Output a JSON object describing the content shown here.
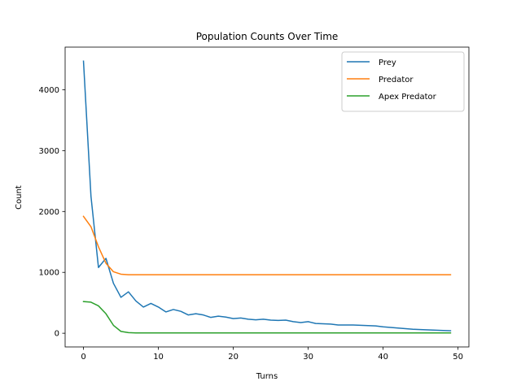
{
  "chart_data": {
    "type": "line",
    "title": "Population Counts Over Time",
    "xlabel": "Turns",
    "ylabel": "Count",
    "xlim": [
      -2.45,
      51.45
    ],
    "ylim": [
      -225,
      4700
    ],
    "xticks": [
      0,
      10,
      20,
      30,
      40,
      50
    ],
    "yticks": [
      0,
      1000,
      2000,
      3000,
      4000
    ],
    "grid": false,
    "legend_position": "top-right",
    "x": [
      0,
      1,
      2,
      3,
      4,
      5,
      6,
      7,
      8,
      9,
      10,
      11,
      12,
      13,
      14,
      15,
      16,
      17,
      18,
      19,
      20,
      21,
      22,
      23,
      24,
      25,
      26,
      27,
      28,
      29,
      30,
      31,
      32,
      33,
      34,
      35,
      36,
      37,
      38,
      39,
      40,
      41,
      42,
      43,
      44,
      45,
      46,
      47,
      48,
      49
    ],
    "series": [
      {
        "name": "Prey",
        "color": "#1f77b4",
        "values": [
          4470,
          2250,
          1080,
          1230,
          820,
          590,
          680,
          530,
          430,
          490,
          430,
          350,
          390,
          360,
          300,
          320,
          300,
          260,
          280,
          265,
          240,
          250,
          230,
          220,
          230,
          215,
          210,
          215,
          190,
          175,
          190,
          160,
          155,
          150,
          135,
          135,
          135,
          130,
          125,
          120,
          105,
          95,
          85,
          75,
          65,
          60,
          55,
          50,
          45,
          40
        ]
      },
      {
        "name": "Predator",
        "color": "#ff7f0e",
        "values": [
          1920,
          1750,
          1420,
          1150,
          1010,
          970,
          962,
          962,
          962,
          962,
          962,
          962,
          962,
          962,
          962,
          962,
          962,
          962,
          962,
          962,
          962,
          962,
          962,
          962,
          962,
          962,
          962,
          962,
          962,
          962,
          962,
          962,
          962,
          962,
          962,
          962,
          962,
          962,
          962,
          962,
          962,
          962,
          962,
          962,
          962,
          962,
          962,
          962,
          962,
          962
        ]
      },
      {
        "name": "Apex Predator",
        "color": "#2ca02c",
        "values": [
          520,
          510,
          450,
          320,
          130,
          30,
          10,
          5,
          5,
          5,
          5,
          5,
          5,
          5,
          5,
          5,
          5,
          5,
          5,
          5,
          5,
          5,
          5,
          5,
          5,
          5,
          5,
          5,
          5,
          5,
          5,
          5,
          5,
          5,
          5,
          5,
          5,
          5,
          5,
          5,
          5,
          5,
          5,
          5,
          5,
          5,
          5,
          5,
          5,
          5
        ]
      }
    ]
  }
}
